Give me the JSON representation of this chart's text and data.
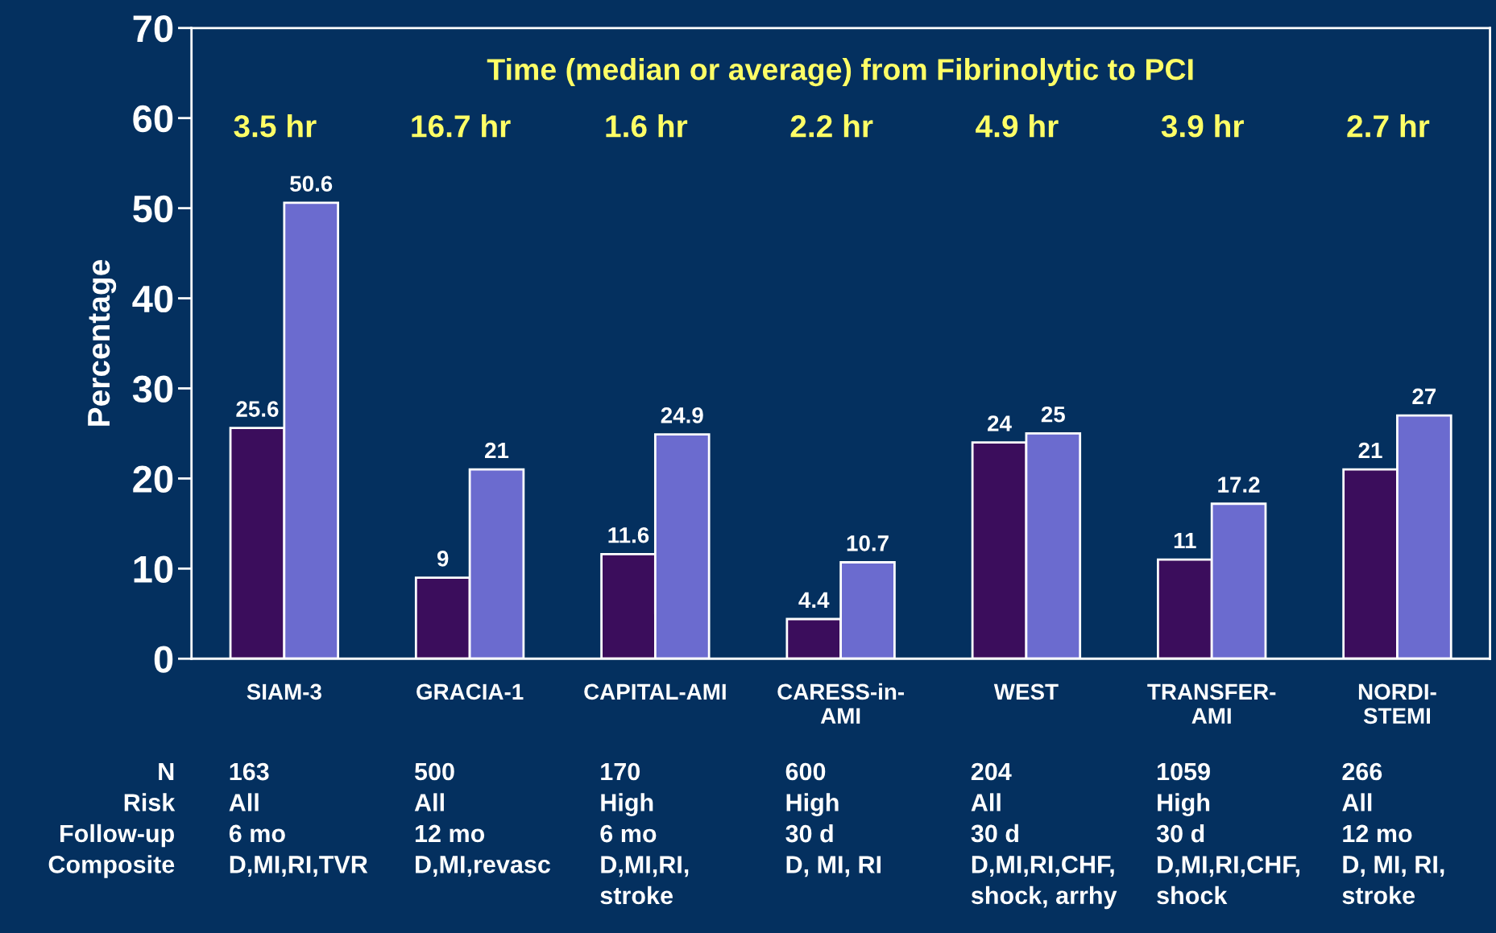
{
  "chart_data": {
    "type": "bar",
    "title": "Time (median or average) from Fibrinolytic to PCI",
    "ylabel": "Percentage",
    "categories": [
      "SIAM-3",
      "GRACIA-1",
      "CAPITAL-AMI",
      "CARESS-in-\nAMI",
      "WEST",
      "TRANSFER-\nAMI",
      "NORDI-\nSTEMI"
    ],
    "series": [
      {
        "color": "#3b0d5c",
        "values": [
          25.6,
          9,
          11.6,
          4.4,
          24,
          11,
          21
        ]
      },
      {
        "color": "#6b6bcf",
        "values": [
          50.6,
          21,
          24.9,
          10.7,
          25,
          17.2,
          27
        ]
      }
    ],
    "ylim": [
      0,
      70
    ],
    "yticks": [
      0,
      10,
      20,
      30,
      40,
      50,
      60,
      70
    ],
    "grid": false,
    "legend": false,
    "data_labels": true,
    "annotations": [
      "3.5 hr",
      "16.7 hr",
      "1.6 hr",
      "2.2 hr",
      "4.9 hr",
      "3.9 hr",
      "2.7 hr",
      "N\nRisk\nFollow-up\nComposite",
      "163\nAll\n6 mo\nD,MI,RI,TVR",
      "500\nAll\n12 mo\nD,MI,revasc",
      "170\nHigh\n6 mo\nD,MI,RI,\nstroke",
      "600\nHigh\n30 d\nD, MI, RI",
      "204\nAll\n30 d\nD,MI,RI,CHF,\nshock, arrhy",
      "1059\nHigh\n30 d\nD,MI,RI,CHF,\nshock",
      "266\nAll\n12 mo\nD, MI, RI,\nstroke"
    ]
  }
}
